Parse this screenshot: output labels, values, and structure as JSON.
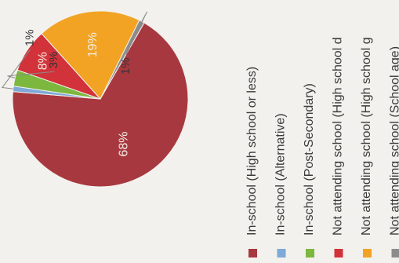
{
  "chart_data": {
    "type": "pie",
    "slices": [
      {
        "label": "In-school (High school or less)",
        "value": 68,
        "data_label": "68%",
        "color": "#a8383f"
      },
      {
        "label": "In-school (Alternative)",
        "value": 1,
        "data_label": "1%",
        "color": "#7ea9d8"
      },
      {
        "label": "In-school (Post-Secondary)",
        "value": 3,
        "data_label": "3%",
        "color": "#7bb83d"
      },
      {
        "label": "Not attending school (High school dropout)",
        "value": 8,
        "data_label": "8%",
        "color": "#d2323a"
      },
      {
        "label": "Not attending school (High school graduate)",
        "value": 19,
        "data_label": "19%",
        "color": "#f2a324"
      },
      {
        "label": "Not attending school (School age)",
        "value": 1,
        "data_label": "1%",
        "color": "#8c8c8c"
      }
    ],
    "legend_position": "right",
    "legend_entries": [
      "In-school (High school or less)",
      "In-school (Alternative)",
      "In-school (Post-Secondary)",
      "Not attending school (High school d",
      "Not attending school (High school g",
      "Not attending school (School age)"
    ]
  }
}
